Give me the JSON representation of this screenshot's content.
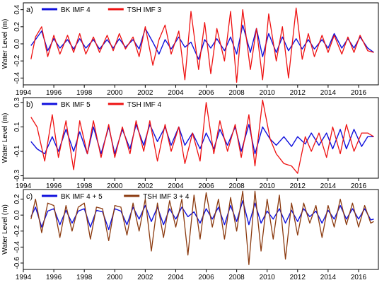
{
  "figure": {
    "ylabel": "Water Level (m)",
    "x_ticks": [
      1994,
      1996,
      1998,
      2000,
      2002,
      2004,
      2006,
      2008,
      2010,
      2012,
      2014,
      2016
    ],
    "x_tick_labels": [
      "1994",
      "1996",
      "1998",
      "2000",
      "2002",
      "2004",
      "2006",
      "2008",
      "2010",
      "2012",
      "2014",
      "2016"
    ]
  },
  "chart_data": [
    {
      "type": "line",
      "panel_label": "a)",
      "xlim": [
        1994,
        2017.3
      ],
      "ylim": [
        -0.48,
        0.48
      ],
      "y_ticks": [
        0.4,
        0.2,
        0.0,
        -0.2,
        -0.4
      ],
      "y_tick_labels": [
        "0.4",
        "0.2",
        "0.0",
        "-0.2",
        "-0.4"
      ],
      "legend_position": "top-left",
      "series": [
        {
          "name": "BK IMF 4",
          "color": "#1010dd",
          "x": [
            1994.5,
            1994.8,
            1995.2,
            1995.6,
            1996.0,
            1996.4,
            1996.9,
            1997.3,
            1997.7,
            1998.1,
            1998.6,
            1999.0,
            1999.5,
            1999.9,
            2000.3,
            2000.7,
            2001.2,
            2001.6,
            2002.0,
            2002.5,
            2002.9,
            2003.3,
            2003.7,
            2004.2,
            2004.6,
            2005.0,
            2005.5,
            2005.9,
            2006.3,
            2006.7,
            2007.2,
            2007.6,
            2008.0,
            2008.4,
            2008.9,
            2009.3,
            2009.7,
            2010.1,
            2010.6,
            2011.0,
            2011.4,
            2011.9,
            2012.3,
            2012.7,
            2013.1,
            2013.6,
            2014.0,
            2014.4,
            2014.9,
            2015.3,
            2015.7,
            2016.1,
            2016.6,
            2017.0
          ],
          "y": [
            -0.02,
            0.05,
            0.15,
            -0.08,
            0.06,
            -0.05,
            0.05,
            -0.06,
            0.06,
            -0.05,
            0.05,
            -0.06,
            0.05,
            -0.05,
            0.06,
            -0.04,
            0.05,
            -0.06,
            0.18,
            0.02,
            -0.12,
            0.05,
            -0.06,
            0.08,
            -0.04,
            0.02,
            -0.18,
            0.05,
            -0.05,
            0.06,
            -0.08,
            0.08,
            -0.12,
            0.22,
            -0.1,
            0.18,
            -0.15,
            0.12,
            -0.1,
            0.08,
            -0.08,
            0.06,
            -0.06,
            0.05,
            -0.06,
            0.05,
            -0.05,
            0.12,
            -0.05,
            0.06,
            -0.05,
            0.08,
            -0.05,
            -0.1
          ]
        },
        {
          "name": "TSH IMF 3",
          "color": "#ee1111",
          "x": [
            1994.5,
            1994.8,
            1995.2,
            1995.6,
            1996.0,
            1996.4,
            1996.9,
            1997.3,
            1997.7,
            1998.1,
            1998.6,
            1999.0,
            1999.5,
            1999.9,
            2000.3,
            2000.7,
            2001.2,
            2001.6,
            2002.0,
            2002.5,
            2002.9,
            2003.3,
            2003.7,
            2004.2,
            2004.6,
            2005.0,
            2005.5,
            2005.9,
            2006.3,
            2006.7,
            2007.2,
            2007.6,
            2008.0,
            2008.4,
            2008.9,
            2009.3,
            2009.7,
            2010.1,
            2010.6,
            2011.0,
            2011.4,
            2011.9,
            2012.3,
            2012.7,
            2013.1,
            2013.6,
            2014.0,
            2014.4,
            2014.9,
            2015.3,
            2015.7,
            2016.1,
            2016.6,
            2017.0
          ],
          "y": [
            -0.18,
            0.08,
            0.2,
            -0.15,
            0.1,
            -0.12,
            0.1,
            -0.1,
            0.12,
            -0.12,
            0.08,
            -0.1,
            0.1,
            -0.08,
            0.12,
            -0.06,
            0.08,
            -0.15,
            0.2,
            -0.25,
            0.05,
            0.22,
            -0.12,
            0.15,
            -0.42,
            0.38,
            -0.3,
            0.25,
            -0.35,
            0.18,
            -0.2,
            0.38,
            -0.45,
            0.4,
            -0.3,
            0.18,
            -0.42,
            0.35,
            -0.2,
            0.2,
            -0.4,
            0.42,
            -0.18,
            0.12,
            -0.15,
            0.1,
            -0.1,
            0.1,
            -0.12,
            0.08,
            -0.1,
            0.1,
            -0.08,
            -0.1
          ]
        }
      ]
    },
    {
      "type": "line",
      "panel_label": "b)",
      "xlim": [
        1994,
        2017.3
      ],
      "ylim": [
        -0.32,
        0.34
      ],
      "y_ticks": [
        0.3,
        0.1,
        -0.1,
        -0.3
      ],
      "y_tick_labels": [
        "0.3",
        "0.1",
        "-0.1",
        "-0.3"
      ],
      "legend_position": "top-left",
      "series": [
        {
          "name": "BK IMF 5",
          "color": "#1010dd",
          "x": [
            1994.5,
            1994.9,
            1995.4,
            1995.9,
            1996.3,
            1996.8,
            1997.3,
            1997.7,
            1998.2,
            1998.6,
            1999.1,
            1999.6,
            2000.0,
            2000.5,
            2001.0,
            2001.4,
            2001.9,
            2002.3,
            2002.8,
            2003.3,
            2003.7,
            2004.2,
            2004.6,
            2005.1,
            2005.6,
            2006.0,
            2006.5,
            2006.9,
            2007.4,
            2007.9,
            2008.3,
            2008.8,
            2009.2,
            2009.7,
            2010.2,
            2010.6,
            2011.1,
            2011.6,
            2012.0,
            2012.5,
            2012.9,
            2013.4,
            2013.9,
            2014.3,
            2014.8,
            2015.2,
            2015.7,
            2016.2,
            2016.6,
            2017.0
          ],
          "y": [
            -0.02,
            -0.08,
            -0.12,
            0.02,
            -0.1,
            0.08,
            -0.1,
            0.06,
            -0.12,
            0.1,
            -0.12,
            0.1,
            -0.12,
            0.08,
            -0.08,
            0.12,
            -0.05,
            0.12,
            -0.02,
            0.1,
            -0.05,
            0.1,
            -0.05,
            0.05,
            -0.08,
            0.05,
            -0.08,
            0.08,
            -0.05,
            0.1,
            -0.1,
            0.12,
            -0.12,
            0.1,
            0.0,
            -0.05,
            0.02,
            -0.06,
            0.02,
            -0.04,
            0.05,
            -0.05,
            0.05,
            -0.08,
            0.08,
            -0.08,
            0.08,
            -0.06,
            0.02,
            0.02
          ]
        },
        {
          "name": "TSH IMF 4",
          "color": "#ee1111",
          "x": [
            1994.5,
            1994.9,
            1995.4,
            1995.9,
            1996.3,
            1996.8,
            1997.3,
            1997.7,
            1998.2,
            1998.6,
            1999.1,
            1999.6,
            2000.0,
            2000.5,
            2001.0,
            2001.4,
            2001.9,
            2002.3,
            2002.8,
            2003.3,
            2003.7,
            2004.2,
            2004.6,
            2005.1,
            2005.6,
            2006.0,
            2006.5,
            2006.9,
            2007.4,
            2007.9,
            2008.3,
            2008.8,
            2009.2,
            2009.7,
            2010.2,
            2010.6,
            2011.1,
            2011.6,
            2012.0,
            2012.5,
            2012.9,
            2013.4,
            2013.9,
            2014.3,
            2014.8,
            2015.2,
            2015.7,
            2016.2,
            2016.6,
            2017.0
          ],
          "y": [
            0.18,
            0.1,
            -0.18,
            0.2,
            -0.15,
            0.15,
            -0.25,
            0.15,
            -0.12,
            0.15,
            -0.15,
            0.12,
            -0.15,
            0.1,
            -0.12,
            0.15,
            -0.1,
            0.15,
            -0.18,
            0.12,
            -0.1,
            0.1,
            -0.2,
            0.05,
            -0.18,
            0.3,
            -0.12,
            0.15,
            -0.1,
            0.12,
            -0.15,
            0.2,
            -0.22,
            0.32,
            0.0,
            -0.12,
            -0.2,
            -0.22,
            -0.28,
            0.02,
            -0.1,
            0.05,
            -0.15,
            0.1,
            -0.12,
            0.12,
            -0.1,
            0.05,
            0.05,
            0.02
          ]
        }
      ]
    },
    {
      "type": "line",
      "panel_label": "c)",
      "xlim": [
        1994,
        2017.3
      ],
      "ylim": [
        -0.68,
        0.32
      ],
      "y_ticks": [
        0.2,
        0.0,
        -0.2,
        -0.4,
        -0.6
      ],
      "y_tick_labels": [
        "0.2",
        "0.0",
        "-0.2",
        "-0.4",
        "-0.6"
      ],
      "legend_position": "top-left",
      "series": [
        {
          "name": "BK IMF 4 + 5",
          "color": "#1010dd",
          "x": [
            1994.5,
            1994.8,
            1995.2,
            1995.6,
            1996.0,
            1996.4,
            1996.8,
            1997.2,
            1997.6,
            1998.0,
            1998.4,
            1998.8,
            1999.2,
            1999.6,
            2000.0,
            2000.4,
            2000.8,
            2001.2,
            2001.6,
            2002.0,
            2002.4,
            2002.8,
            2003.2,
            2003.6,
            2004.0,
            2004.4,
            2004.8,
            2005.2,
            2005.6,
            2006.0,
            2006.4,
            2006.8,
            2007.2,
            2007.6,
            2008.0,
            2008.4,
            2008.8,
            2009.2,
            2009.6,
            2010.0,
            2010.4,
            2010.8,
            2011.2,
            2011.6,
            2012.0,
            2012.4,
            2012.8,
            2013.2,
            2013.6,
            2014.0,
            2014.4,
            2014.8,
            2015.2,
            2015.6,
            2016.0,
            2016.4,
            2016.8,
            2017.0
          ],
          "y": [
            -0.02,
            0.1,
            -0.15,
            0.05,
            0.08,
            -0.12,
            0.06,
            -0.1,
            0.05,
            0.08,
            -0.15,
            0.06,
            0.04,
            -0.18,
            0.08,
            0.05,
            -0.12,
            0.1,
            -0.05,
            0.12,
            -0.08,
            0.1,
            -0.12,
            0.08,
            -0.05,
            0.1,
            -0.02,
            0.04,
            -0.1,
            0.08,
            -0.05,
            0.1,
            -0.12,
            0.12,
            -0.08,
            0.18,
            -0.12,
            0.15,
            -0.1,
            0.05,
            -0.05,
            0.08,
            -0.1,
            0.06,
            -0.08,
            0.08,
            -0.02,
            0.05,
            -0.1,
            0.06,
            -0.05,
            0.12,
            -0.05,
            0.08,
            -0.05,
            0.08,
            -0.06,
            -0.05
          ]
        },
        {
          "name": "TSH IMF 3 + 4",
          "color": "#8b3a0f",
          "x": [
            1994.5,
            1994.8,
            1995.2,
            1995.6,
            1996.0,
            1996.4,
            1996.8,
            1997.2,
            1997.6,
            1998.0,
            1998.4,
            1998.8,
            1999.2,
            1999.6,
            2000.0,
            2000.4,
            2000.8,
            2001.2,
            2001.6,
            2002.0,
            2002.4,
            2002.8,
            2003.2,
            2003.6,
            2004.0,
            2004.4,
            2004.8,
            2005.2,
            2005.6,
            2006.0,
            2006.4,
            2006.8,
            2007.2,
            2007.6,
            2008.0,
            2008.4,
            2008.8,
            2009.2,
            2009.6,
            2010.0,
            2010.4,
            2010.8,
            2011.2,
            2011.6,
            2012.0,
            2012.4,
            2012.8,
            2013.2,
            2013.6,
            2014.0,
            2014.4,
            2014.8,
            2015.2,
            2015.6,
            2016.0,
            2016.4,
            2016.8,
            2017.0
          ],
          "y": [
            -0.05,
            0.2,
            -0.22,
            0.15,
            0.12,
            -0.28,
            0.12,
            -0.2,
            0.1,
            0.15,
            -0.3,
            0.1,
            0.08,
            -0.32,
            0.12,
            0.1,
            -0.25,
            0.15,
            -0.2,
            0.2,
            -0.45,
            0.15,
            -0.28,
            0.18,
            -0.15,
            0.2,
            -0.5,
            0.25,
            -0.3,
            0.28,
            -0.15,
            0.2,
            -0.3,
            0.22,
            -0.2,
            0.3,
            -0.62,
            0.3,
            -0.45,
            0.2,
            -0.3,
            0.25,
            -0.55,
            0.15,
            -0.25,
            0.15,
            -0.1,
            0.12,
            -0.28,
            0.12,
            -0.15,
            0.2,
            -0.12,
            0.15,
            -0.15,
            0.12,
            -0.1,
            -0.08
          ]
        }
      ]
    }
  ]
}
